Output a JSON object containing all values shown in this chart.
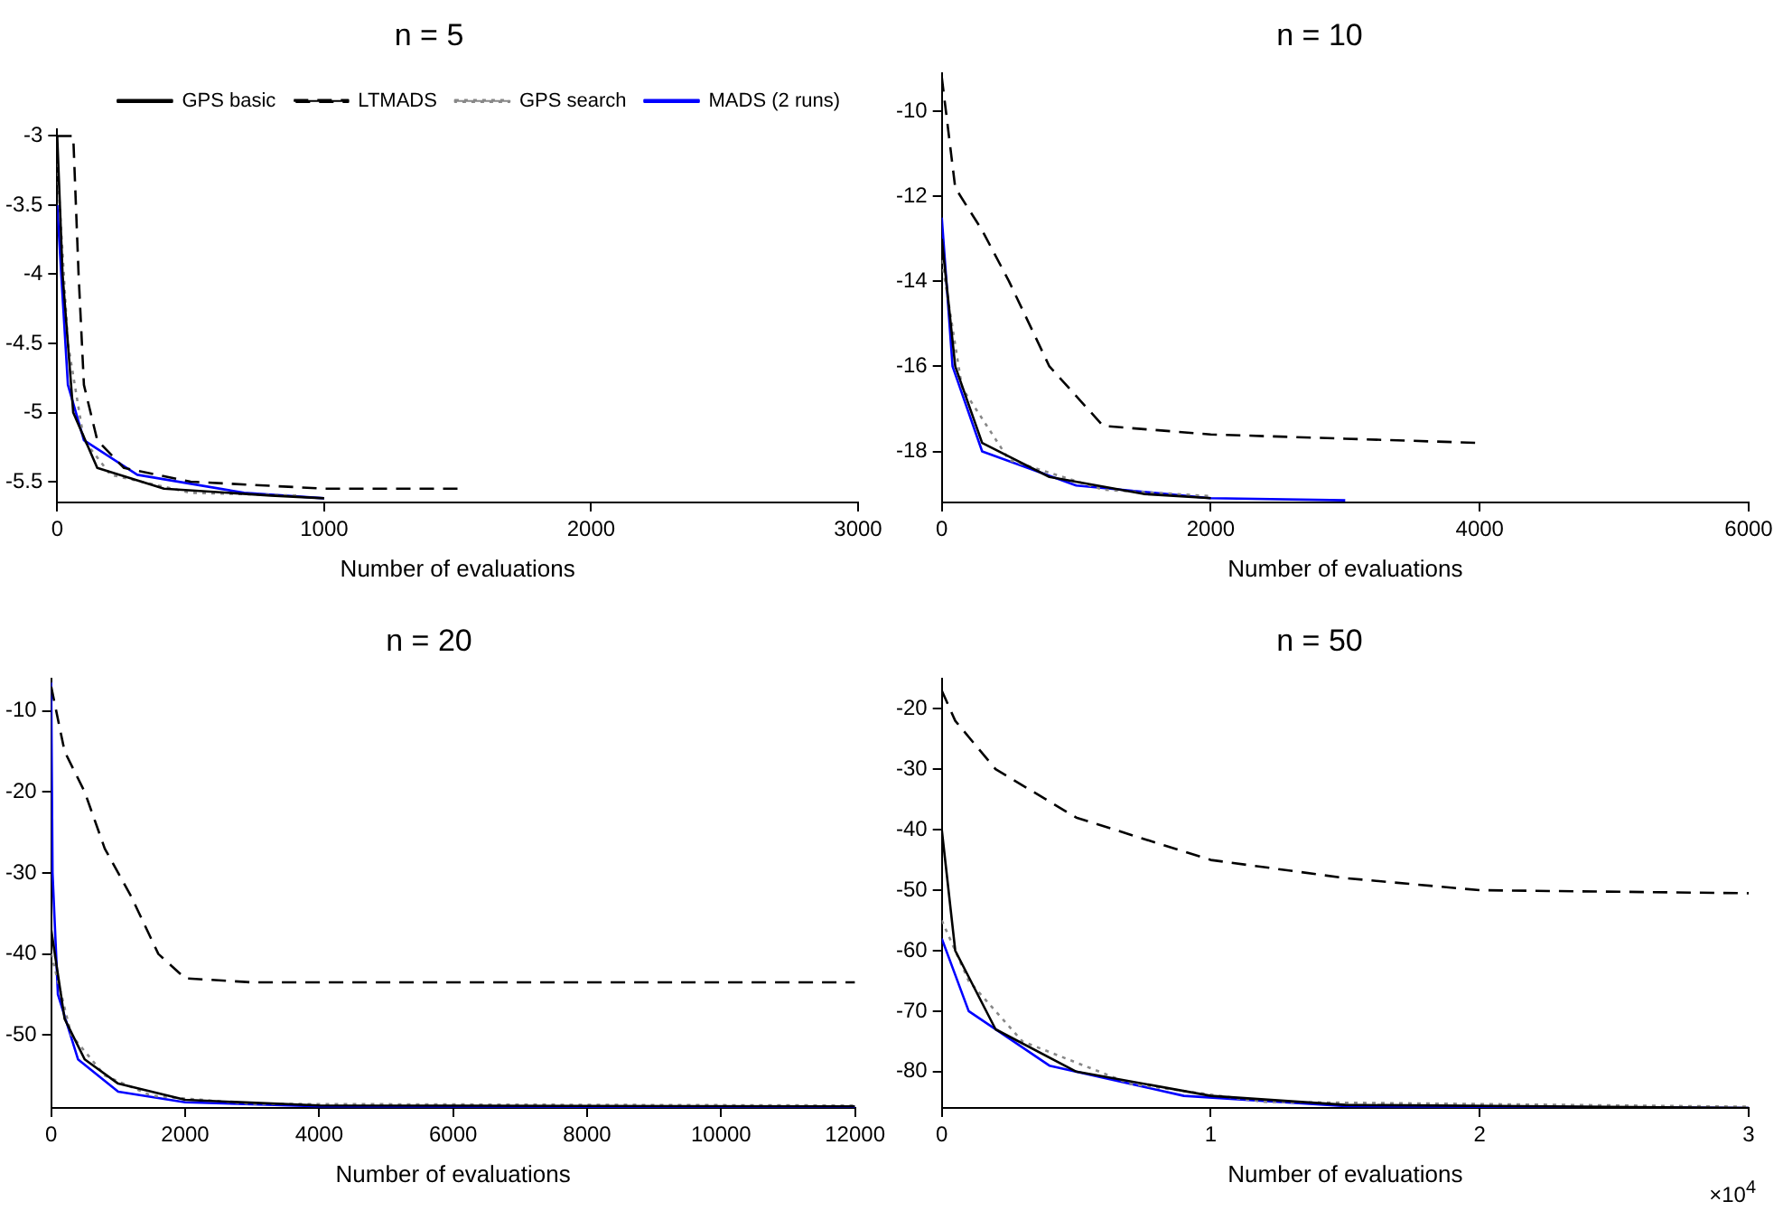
{
  "chart_data": [
    {
      "type": "line",
      "title": "n = 5",
      "xlabel": "Number of evaluations",
      "xlim": [
        0,
        3000
      ],
      "xticks": [
        0,
        1000,
        2000,
        3000
      ],
      "ylim": [
        -5.65,
        -2.95
      ],
      "yticks": [
        -3,
        -3.5,
        -4,
        -4.5,
        -5,
        -5.5
      ],
      "grid": false,
      "legend": "top right",
      "marker": "none",
      "series": [
        {
          "name": "GPS basic",
          "color": "#000000",
          "line_style": "solid",
          "x": [
            0,
            20,
            60,
            150,
            400,
            800,
            1000
          ],
          "values": [
            -3.0,
            -4.0,
            -5.0,
            -5.4,
            -5.55,
            -5.6,
            -5.62
          ]
        },
        {
          "name": "LTMADS",
          "color": "#000000",
          "line_style": "dashed",
          "x": [
            0,
            60,
            80,
            100,
            150,
            250,
            500,
            1000,
            1500
          ],
          "values": [
            -3.0,
            -3.0,
            -4.0,
            -4.8,
            -5.2,
            -5.4,
            -5.5,
            -5.55,
            -5.55
          ]
        },
        {
          "name": "GPS search",
          "color": "#888888",
          "line_style": "dotted",
          "x": [
            0,
            40,
            100,
            200,
            500,
            900
          ],
          "values": [
            -3.2,
            -4.5,
            -5.2,
            -5.45,
            -5.58,
            -5.6
          ]
        },
        {
          "name": "MADS (2 runs)",
          "color": "#0000ff",
          "line_style": "solid",
          "x": [
            0,
            15,
            40,
            100,
            300,
            700,
            1000
          ],
          "values": [
            -3.5,
            -4.0,
            -4.8,
            -5.2,
            -5.45,
            -5.58,
            -5.62
          ]
        }
      ]
    },
    {
      "type": "line",
      "title": "n = 10",
      "xlabel": "Number of evaluations",
      "xlim": [
        0,
        6000
      ],
      "xticks": [
        0,
        2000,
        4000,
        6000
      ],
      "ylim": [
        -19.2,
        -9.1
      ],
      "yticks": [
        -10,
        -12,
        -14,
        -16,
        -18
      ],
      "grid": false,
      "marker": "none",
      "series": [
        {
          "color": "#000000",
          "line_style": "solid",
          "x": [
            0,
            100,
            300,
            800,
            1500,
            2000
          ],
          "values": [
            -13,
            -16,
            -17.8,
            -18.6,
            -19,
            -19.1
          ]
        },
        {
          "color": "#000000",
          "line_style": "dashed",
          "x": [
            0,
            100,
            300,
            500,
            800,
            1200,
            2000,
            3000,
            4000
          ],
          "values": [
            -9.2,
            -11.8,
            -12.8,
            -14,
            -16,
            -17.4,
            -17.6,
            -17.7,
            -17.8
          ]
        },
        {
          "color": "#888888",
          "line_style": "dotted",
          "x": [
            0,
            150,
            500,
            1200,
            2000
          ],
          "values": [
            -13.5,
            -16.5,
            -18.2,
            -18.9,
            -19.05
          ]
        },
        {
          "color": "#0000ff",
          "line_style": "solid",
          "x": [
            0,
            80,
            300,
            1000,
            2000,
            3000
          ],
          "values": [
            -12.5,
            -16,
            -18,
            -18.8,
            -19.1,
            -19.15
          ]
        }
      ]
    },
    {
      "type": "line",
      "title": "n = 20",
      "xlabel": "Number of evaluations",
      "xlim": [
        0,
        12000
      ],
      "xticks": [
        0,
        2000,
        4000,
        6000,
        8000,
        10000,
        12000
      ],
      "ylim": [
        -59,
        -6
      ],
      "yticks": [
        -10,
        -20,
        -30,
        -40,
        -50
      ],
      "grid": false,
      "marker": "none",
      "series": [
        {
          "color": "#000000",
          "line_style": "solid",
          "x": [
            0,
            200,
            500,
            1000,
            2000,
            4000,
            12000
          ],
          "values": [
            -37,
            -48,
            -53,
            -56,
            -58,
            -58.7,
            -58.8
          ]
        },
        {
          "color": "#000000",
          "line_style": "dashed",
          "x": [
            0,
            200,
            500,
            800,
            1200,
            1600,
            2000,
            3000,
            6000,
            12000
          ],
          "values": [
            -7,
            -15,
            -20,
            -27,
            -33,
            -40,
            -43,
            -43.5,
            -43.5,
            -43.5
          ]
        },
        {
          "color": "#888888",
          "line_style": "dotted",
          "x": [
            0,
            300,
            800,
            1500,
            3000,
            12000
          ],
          "values": [
            -40,
            -50,
            -55,
            -57.5,
            -58.5,
            -58.7
          ]
        },
        {
          "color": "#0000ff",
          "line_style": "solid",
          "x": [
            0,
            20,
            100,
            400,
            1000,
            2000,
            4000,
            12000
          ],
          "values": [
            -6.5,
            -30,
            -45,
            -53,
            -57,
            -58.3,
            -58.8,
            -58.9
          ]
        }
      ]
    },
    {
      "type": "line",
      "title": "n = 50",
      "xlabel": "Number of evaluations",
      "annotations": [
        "×10$^{4}$"
      ],
      "xlim": [
        0,
        3
      ],
      "xticks": [
        0,
        1,
        2,
        3
      ],
      "ylim": [
        -86,
        -15
      ],
      "yticks": [
        -20,
        -30,
        -40,
        -50,
        -60,
        -70,
        -80
      ],
      "grid": false,
      "marker": "none",
      "series": [
        {
          "color": "#000000",
          "line_style": "solid",
          "x": [
            0,
            0.05,
            0.2,
            0.5,
            1,
            1.5,
            3
          ],
          "values": [
            -40,
            -60,
            -73,
            -80,
            -84,
            -85.5,
            -86
          ]
        },
        {
          "color": "#000000",
          "line_style": "dashed",
          "x": [
            0,
            0.05,
            0.2,
            0.5,
            1,
            1.5,
            2,
            3
          ],
          "values": [
            -17,
            -22,
            -30,
            -38,
            -45,
            -48,
            -50,
            -50.5
          ]
        },
        {
          "color": "#888888",
          "line_style": "dotted",
          "x": [
            0,
            0.1,
            0.3,
            0.7,
            1.2,
            3
          ],
          "values": [
            -55,
            -65,
            -75,
            -82,
            -85,
            -85.8
          ]
        },
        {
          "color": "#0000ff",
          "line_style": "solid",
          "x": [
            0,
            0.1,
            0.4,
            0.9,
            1.5,
            3
          ],
          "values": [
            -58,
            -70,
            -79,
            -84,
            -85.7,
            -86
          ]
        }
      ]
    }
  ]
}
